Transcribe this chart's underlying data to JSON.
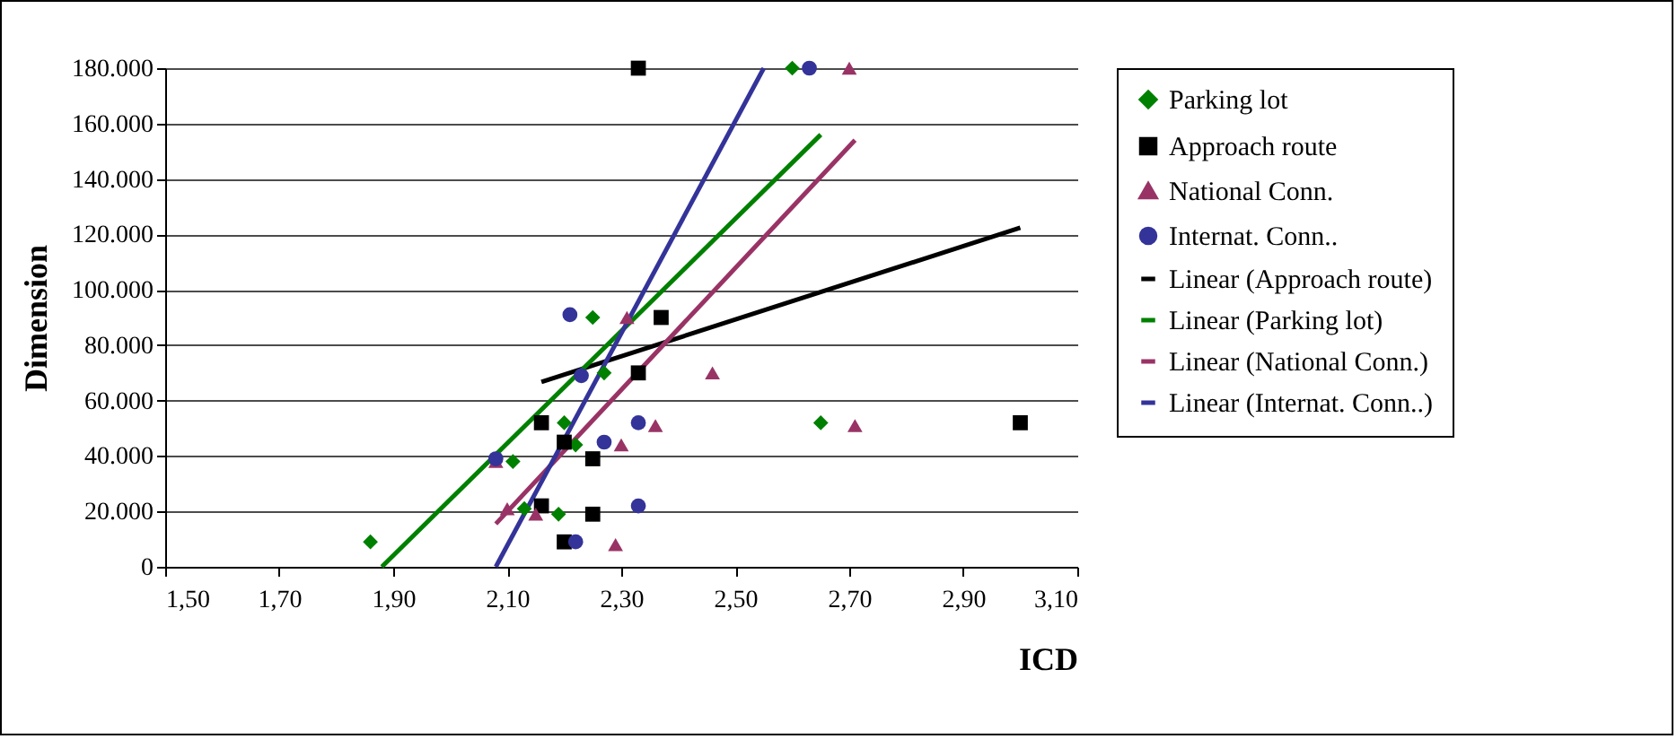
{
  "chart_data": {
    "type": "scatter",
    "xlabel": "ICD",
    "ylabel": "Dimension",
    "xlim": [
      1.5,
      3.1
    ],
    "xticks": [
      {
        "value": 1.5,
        "label": "1,50"
      },
      {
        "value": 1.7,
        "label": "1,70"
      },
      {
        "value": 1.9,
        "label": "1,90"
      },
      {
        "value": 2.1,
        "label": "2,10"
      },
      {
        "value": 2.3,
        "label": "2,30"
      },
      {
        "value": 2.5,
        "label": "2,50"
      },
      {
        "value": 2.7,
        "label": "2,70"
      },
      {
        "value": 2.9,
        "label": "2,90"
      },
      {
        "value": 3.1,
        "label": "3,10"
      }
    ],
    "ylim": [
      0,
      180000
    ],
    "yticks": [
      0,
      {
        "value": 20000,
        "label": "20.000"
      },
      {
        "value": 40000,
        "label": "40.000"
      },
      {
        "value": 60000,
        "label": "60.000"
      },
      {
        "value": 80000,
        "label": "80.000"
      },
      {
        "value": 100000,
        "label": "100.000"
      },
      {
        "value": 120000,
        "label": "120.000"
      },
      {
        "value": 140000,
        "label": "140.000"
      },
      {
        "value": 160000,
        "label": "160.000"
      },
      {
        "value": 180000,
        "label": "180.000"
      }
    ],
    "grid": "y",
    "legend": "right",
    "series": [
      {
        "name": "Parking lot",
        "type": "scatter",
        "marker": "diamond",
        "color": "#008000",
        "x": [
          1.86,
          2.6,
          2.25,
          2.27,
          2.2,
          2.22,
          2.11,
          2.13,
          2.19,
          2.65
        ],
        "values": [
          9000,
          180000,
          90000,
          70000,
          52000,
          44000,
          38000,
          21000,
          19000,
          52000
        ]
      },
      {
        "name": "Approach route",
        "type": "scatter",
        "marker": "square",
        "color": "#000000",
        "x": [
          2.33,
          2.37,
          2.33,
          2.16,
          2.2,
          2.25,
          2.16,
          2.25,
          2.2,
          3.0
        ],
        "values": [
          180000,
          90000,
          70000,
          52000,
          45000,
          39000,
          22000,
          19000,
          9000,
          52000
        ]
      },
      {
        "name": "National Conn.",
        "type": "scatter",
        "marker": "triangle",
        "color": "#993366",
        "x": [
          2.31,
          2.46,
          2.36,
          2.3,
          2.08,
          2.1,
          2.15,
          2.29,
          2.7,
          2.71
        ],
        "values": [
          90000,
          70000,
          51000,
          44000,
          38000,
          21000,
          19000,
          8000,
          180000,
          51000
        ]
      },
      {
        "name": "Internat. Conn..",
        "type": "scatter",
        "marker": "circle",
        "color": "#333399",
        "x": [
          2.63,
          2.21,
          2.23,
          2.33,
          2.27,
          2.08,
          2.33,
          2.22
        ],
        "values": [
          180000,
          91000,
          69000,
          52000,
          45000,
          39000,
          22000,
          9000
        ]
      },
      {
        "name": "Linear (Approach route)",
        "type": "line",
        "marker": "none",
        "color": "#000000",
        "x": [
          2.16,
          3.0
        ],
        "values": [
          66700,
          122400
        ]
      },
      {
        "name": "Linear (Parking lot)",
        "type": "line",
        "marker": "none",
        "color": "#008000",
        "x": [
          1.88,
          2.65
        ],
        "values": [
          0,
          156000
        ]
      },
      {
        "name": "Linear (National Conn.)",
        "type": "line",
        "marker": "none",
        "color": "#993366",
        "x": [
          2.08,
          2.71
        ],
        "values": [
          15500,
          154000
        ]
      },
      {
        "name": "Linear (Internat. Conn..)",
        "type": "line",
        "marker": "none",
        "color": "#333399",
        "x": [
          2.08,
          2.55
        ],
        "values": [
          0,
          180000
        ]
      }
    ]
  }
}
